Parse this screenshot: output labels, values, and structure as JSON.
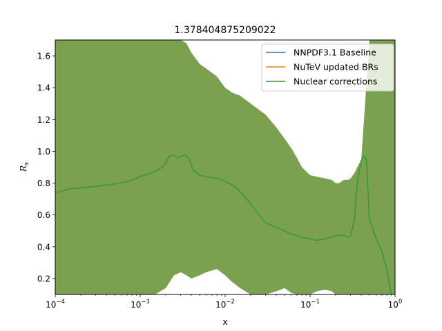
{
  "chart_data": {
    "type": "line",
    "title": "1.378404875209022",
    "xlabel": "x",
    "ylabel": "R_s",
    "xscale": "log",
    "xlim": [
      0.0001,
      1
    ],
    "ylim": [
      0.1,
      1.7
    ],
    "grid": false,
    "legend_position": "top-right",
    "x_ticks": [
      {
        "value": 0.0001,
        "base": "10",
        "exp": "−4"
      },
      {
        "value": 0.001,
        "base": "10",
        "exp": "−3"
      },
      {
        "value": 0.01,
        "base": "10",
        "exp": "−2"
      },
      {
        "value": 0.1,
        "base": "10",
        "exp": "−1"
      },
      {
        "value": 1,
        "base": "10",
        "exp": "0"
      }
    ],
    "y_ticks": [
      {
        "value": 0.2,
        "label": "0.2"
      },
      {
        "value": 0.4,
        "label": "0.4"
      },
      {
        "value": 0.6,
        "label": "0.6"
      },
      {
        "value": 0.8,
        "label": "0.8"
      },
      {
        "value": 1.0,
        "label": "1.0"
      },
      {
        "value": 1.2,
        "label": "1.2"
      },
      {
        "value": 1.4,
        "label": "1.4"
      },
      {
        "value": 1.6,
        "label": "1.6"
      }
    ],
    "band": {
      "color": "#7ba050",
      "x": [
        0.0001,
        0.0003,
        0.001,
        0.0015,
        0.002,
        0.0025,
        0.003,
        0.0035,
        0.004,
        0.005,
        0.006,
        0.008,
        0.01,
        0.012,
        0.015,
        0.02,
        0.03,
        0.04,
        0.05,
        0.06,
        0.07,
        0.08,
        0.1,
        0.12,
        0.15,
        0.18,
        0.2,
        0.22,
        0.25,
        0.28,
        0.3,
        0.33,
        0.4,
        0.5,
        0.6,
        0.7,
        0.8,
        0.9,
        1.0
      ],
      "upper": [
        1.7,
        1.7,
        1.7,
        1.7,
        1.7,
        1.7,
        1.7,
        1.68,
        1.62,
        1.55,
        1.52,
        1.47,
        1.4,
        1.37,
        1.35,
        1.3,
        1.23,
        1.15,
        1.08,
        1.02,
        0.96,
        0.9,
        0.85,
        0.84,
        0.83,
        0.82,
        0.8,
        0.8,
        0.82,
        0.82,
        0.83,
        0.86,
        0.95,
        1.7,
        1.7,
        1.7,
        1.7,
        1.7,
        1.7
      ],
      "lower": [
        0.1,
        0.1,
        0.1,
        0.1,
        0.14,
        0.22,
        0.24,
        0.22,
        0.2,
        0.22,
        0.24,
        0.26,
        0.22,
        0.18,
        0.14,
        0.1,
        0.1,
        0.12,
        0.14,
        0.11,
        0.1,
        0.1,
        0.1,
        0.12,
        0.13,
        0.12,
        0.1,
        0.1,
        0.1,
        0.1,
        0.1,
        0.1,
        0.1,
        0.1,
        0.1,
        0.1,
        0.1,
        0.1,
        0.1
      ]
    },
    "x": [
      0.0001,
      0.00015,
      0.0002,
      0.0003,
      0.0005,
      0.0007,
      0.001,
      0.0013,
      0.0016,
      0.0019,
      0.0022,
      0.0025,
      0.0028,
      0.0031,
      0.0034,
      0.0038,
      0.0042,
      0.005,
      0.006,
      0.008,
      0.01,
      0.013,
      0.016,
      0.02,
      0.025,
      0.03,
      0.04,
      0.05,
      0.06,
      0.07,
      0.08,
      0.1,
      0.12,
      0.15,
      0.18,
      0.2,
      0.22,
      0.25,
      0.28,
      0.3,
      0.33,
      0.36,
      0.4,
      0.43,
      0.46,
      0.5,
      0.6,
      0.7,
      0.8,
      0.9
    ],
    "series": [
      {
        "name": "NNPDF3.1 Baseline",
        "color": "#1f77b4",
        "values": [
          0.74,
          0.765,
          0.77,
          0.78,
          0.795,
          0.81,
          0.84,
          0.86,
          0.88,
          0.91,
          0.97,
          0.975,
          0.96,
          0.97,
          0.975,
          0.95,
          0.88,
          0.85,
          0.84,
          0.83,
          0.81,
          0.78,
          0.73,
          0.67,
          0.6,
          0.55,
          0.52,
          0.5,
          0.48,
          0.47,
          0.46,
          0.45,
          0.44,
          0.45,
          0.46,
          0.47,
          0.475,
          0.47,
          0.46,
          0.47,
          0.56,
          0.8,
          0.94,
          0.97,
          0.95,
          0.57,
          0.45,
          0.37,
          0.26,
          0.1
        ]
      },
      {
        "name": "NuTeV updated BRs",
        "color": "#ff7f0e",
        "values": [
          0.74,
          0.765,
          0.77,
          0.78,
          0.795,
          0.81,
          0.84,
          0.86,
          0.88,
          0.91,
          0.97,
          0.975,
          0.96,
          0.97,
          0.975,
          0.95,
          0.88,
          0.85,
          0.84,
          0.83,
          0.81,
          0.78,
          0.73,
          0.67,
          0.6,
          0.55,
          0.52,
          0.5,
          0.48,
          0.47,
          0.46,
          0.45,
          0.44,
          0.45,
          0.46,
          0.47,
          0.475,
          0.47,
          0.46,
          0.47,
          0.56,
          0.8,
          0.94,
          0.97,
          0.95,
          0.57,
          0.45,
          0.37,
          0.26,
          0.1
        ]
      },
      {
        "name": "Nuclear corrections",
        "color": "#2ca02c",
        "values": [
          0.74,
          0.765,
          0.77,
          0.78,
          0.795,
          0.81,
          0.84,
          0.86,
          0.88,
          0.91,
          0.97,
          0.975,
          0.96,
          0.97,
          0.975,
          0.95,
          0.88,
          0.85,
          0.84,
          0.83,
          0.81,
          0.78,
          0.73,
          0.67,
          0.6,
          0.55,
          0.52,
          0.5,
          0.48,
          0.47,
          0.46,
          0.45,
          0.44,
          0.45,
          0.46,
          0.47,
          0.475,
          0.47,
          0.46,
          0.47,
          0.56,
          0.8,
          0.94,
          0.97,
          0.95,
          0.57,
          0.45,
          0.37,
          0.26,
          0.1
        ]
      }
    ]
  }
}
